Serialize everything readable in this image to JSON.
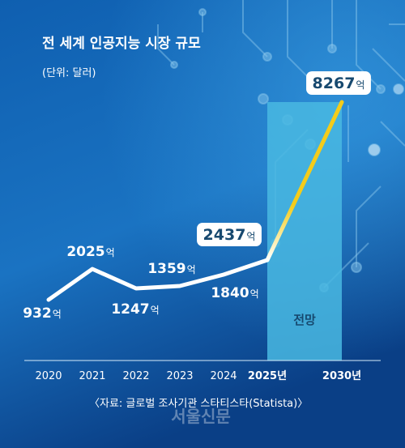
{
  "chart_data": {
    "type": "line",
    "title": "전 세계 인공지능 시장 규모",
    "subtitle": "(단위: 달러)",
    "unit": "억",
    "categories": [
      "2020",
      "2021",
      "2022",
      "2023",
      "2024",
      "2025년",
      "2030년"
    ],
    "values": [
      932,
      2025,
      1247,
      1359,
      1840,
      2437,
      8267
    ],
    "value_labels": [
      "932",
      "2025",
      "1247",
      "1359",
      "1840",
      "2437",
      "8267"
    ],
    "highlighted_values": [
      "2025년",
      "2030년"
    ],
    "forecast": {
      "from": "2025년",
      "to": "2030년",
      "label": "전망"
    },
    "source": "〈자료: 글로벌 조사기관 스타티스타(Statista)〉",
    "watermark": "서울신문",
    "grid": false,
    "colors": {
      "background_top": "#1d78c4",
      "background_bottom": "#0a3f86",
      "line": "#ffffff",
      "forecast_line": "#f4cc1a",
      "forecast_band": "#49b9e2",
      "text": "#ffffff",
      "highlight_box": "#ffffff",
      "highlight_text": "#17496f"
    }
  }
}
